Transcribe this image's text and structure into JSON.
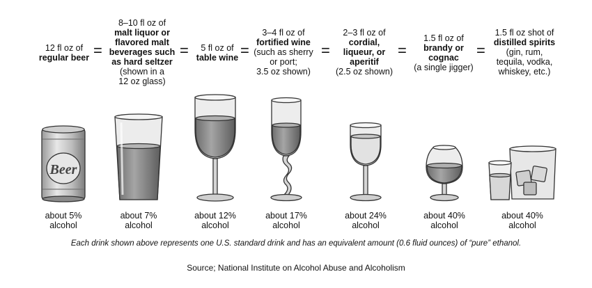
{
  "drinks": [
    {
      "l1": "12 fl oz of",
      "l2": "regular beer",
      "l3": "",
      "l4": "",
      "l5": "",
      "l6": "",
      "pct": "about 5%",
      "unit": "alcohol",
      "can_text": "Beer"
    },
    {
      "l1": "8–10 fl oz of",
      "l2": "malt liquor or",
      "l3": "flavored malt",
      "l4": "beverages such",
      "l5": "as hard seltzer",
      "l6": "(shown in a",
      "l7": "12 oz glass)",
      "pct": "about 7%",
      "unit": "alcohol"
    },
    {
      "l1": "5 fl oz of",
      "l2": "table wine",
      "pct": "about 12%",
      "unit": "alcohol"
    },
    {
      "l1": "3–4 fl oz of",
      "l2": "fortified wine",
      "l3": "(such as sherry",
      "l4": "or port;",
      "l5": "3.5 oz shown)",
      "pct": "about 17%",
      "unit": "alcohol"
    },
    {
      "l1": "2–3 fl oz of",
      "l2": "cordial,",
      "l3": "liqueur, or",
      "l4": "aperitif",
      "l5": "(2.5 oz shown)",
      "pct": "about 24%",
      "unit": "alcohol"
    },
    {
      "l1": "1.5 fl oz of",
      "l2": "brandy or",
      "l3": "cognac",
      "l4": "(a single jigger)",
      "pct": "about 40%",
      "unit": "alcohol"
    },
    {
      "l1": "1.5 fl oz shot of",
      "l2": "distilled spirits",
      "l3": "(gin, rum,",
      "l4": "tequila, vodka,",
      "l5": "whiskey, etc.)",
      "pct": "about 40%",
      "unit": "alcohol"
    }
  ],
  "equals": "=",
  "footnote": "Each drink shown above represents one U.S. standard drink and has an equivalent amount (0.6 fluid ounces) of “pure” ethanol.",
  "source": "Source; National Institute on Alcohol Abuse and Alcoholism",
  "colors": {
    "liquid": "#8a8a8a",
    "glass": "#d9d9d9",
    "outline": "#333333"
  }
}
